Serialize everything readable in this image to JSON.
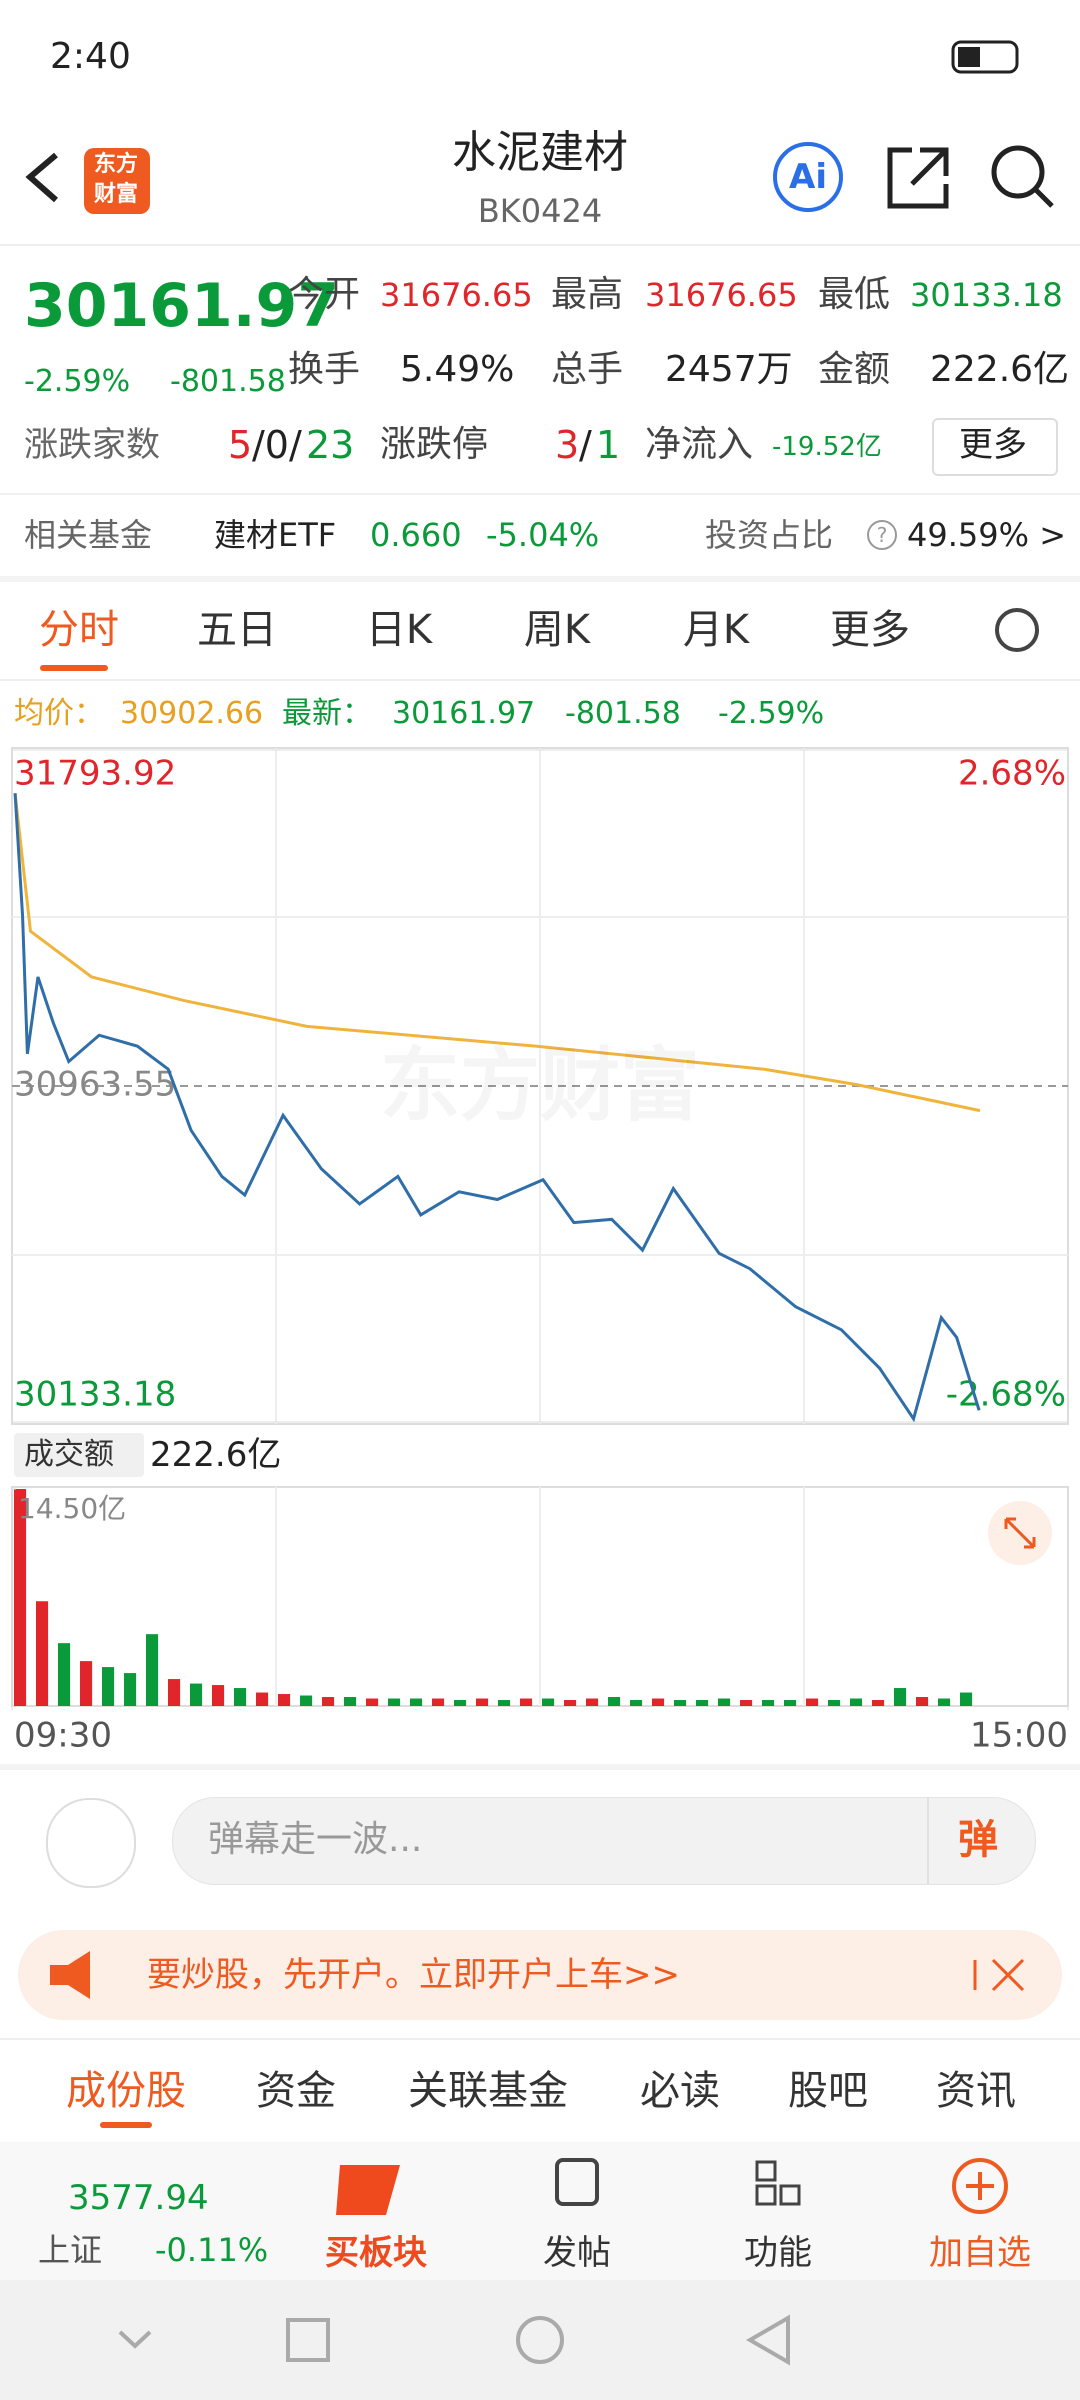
{
  "status_bar": {
    "time": "2:40"
  },
  "header": {
    "logo": [
      "东方",
      "财富"
    ],
    "title": "水泥建材",
    "code": "BK0424",
    "ai": "Ai"
  },
  "quote": {
    "price": "30161.97",
    "change_pct": "-2.59%",
    "change": "-801.58",
    "fields": [
      {
        "label": "今开",
        "value": "31676.65"
      },
      {
        "label": "最高",
        "value": "31676.65"
      },
      {
        "label": "最低",
        "value": "30133.18"
      },
      {
        "label": "换手",
        "value": "5.49%"
      },
      {
        "label": "总手",
        "value": "2457万"
      },
      {
        "label": "金额",
        "value": "222.6亿"
      }
    ],
    "breadth_label": "涨跌家数",
    "breadth_up": "5",
    "breadth_flat": "/0/",
    "breadth_down": "23",
    "limit_label": "涨跌停",
    "limit_up": "3",
    "limit_sep": "/",
    "limit_down": "1",
    "netflow_label": "净流入",
    "netflow": "-19.52亿",
    "more": "更多"
  },
  "fund": {
    "label": "相关基金",
    "name": "建材ETF",
    "price": "0.660",
    "change": "-5.04%",
    "ratio_label": "投资占比",
    "ratio_help": "?",
    "ratio": "49.59% >"
  },
  "tabs": [
    "分时",
    "五日",
    "日K",
    "周K",
    "月K",
    "更多"
  ],
  "intraday": {
    "legend": {
      "avg_label": "均价：",
      "avg": "30902.66",
      "last_label": "最新：",
      "last": "30161.97",
      "change": "-801.58",
      "pct": "-2.59%"
    },
    "watermark": "东方财富",
    "xlim": [
      0,
      240
    ],
    "xticks": [
      {
        "value": 0,
        "label": "09:30"
      },
      {
        "value": 240,
        "label": "15:00"
      }
    ],
    "ylim": [
      30133.18,
      31793.92
    ],
    "yticks": [
      30133.18,
      30963.55,
      31793.92
    ],
    "pct_top": "2.68%",
    "pct_bottom": "-2.68%",
    "price": {
      "color": "#2f6ea8",
      "x": [
        0.7,
        2.4,
        3.5,
        5.9,
        9.4,
        12.9,
        19.8,
        28.5,
        35.5,
        40.7,
        47.7,
        52.9,
        61.6,
        70.3,
        79,
        87.7,
        92.9,
        101.6,
        110.3,
        120.7,
        127.7,
        136.3,
        143.3,
        150.3,
        160.7,
        167.7,
        178.1,
        188.5,
        197.2,
        204.9,
        211.2,
        214.7,
        219.8
      ],
      "values": [
        31687,
        31384,
        31043,
        31233,
        31119,
        31024,
        31089,
        31062,
        31005,
        30854,
        30740,
        30694,
        30891,
        30759,
        30672,
        30740,
        30645,
        30702,
        30683,
        30732,
        30626,
        30634,
        30558,
        30710,
        30550,
        30512,
        30418,
        30361,
        30266,
        30141,
        30391,
        30342,
        30161.97
      ]
    },
    "avg": {
      "color": "#f0b43c",
      "x": [
        0.7,
        4.2,
        18.1,
        39,
        67,
        119,
        171,
        192,
        220
      ],
      "values": [
        31687,
        31346,
        31233,
        31175,
        31111,
        31062,
        31005,
        30967,
        30902.66
      ]
    },
    "volume_label": "成交额",
    "volume_total": "222.6亿",
    "vol_ylim": [
      0,
      14.5
    ],
    "vol_yticks": [
      {
        "value": 14.5,
        "label": "14.50亿"
      }
    ],
    "volume": {
      "x": [
        0,
        5,
        10,
        15,
        20,
        25,
        30,
        35,
        40,
        45,
        50,
        55,
        60,
        65,
        70,
        75,
        80,
        85,
        90,
        95,
        100,
        105,
        110,
        115,
        120,
        125,
        130,
        135,
        140,
        145,
        150,
        155,
        160,
        165,
        170,
        175,
        180,
        185,
        190,
        195,
        200,
        205,
        210,
        215
      ],
      "values": [
        14.5,
        7.0,
        4.2,
        3.0,
        2.6,
        2.2,
        4.8,
        1.8,
        1.5,
        1.4,
        1.2,
        0.9,
        0.8,
        0.7,
        0.6,
        0.6,
        0.5,
        0.5,
        0.5,
        0.5,
        0.4,
        0.5,
        0.4,
        0.5,
        0.5,
        0.4,
        0.5,
        0.6,
        0.4,
        0.5,
        0.4,
        0.4,
        0.5,
        0.4,
        0.4,
        0.4,
        0.5,
        0.4,
        0.5,
        0.4,
        1.2,
        0.6,
        0.5,
        0.9
      ],
      "colors": [
        "#e0262b",
        "#e0262b",
        "#0b9a3a",
        "#e0262b",
        "#0b9a3a",
        "#0b9a3a",
        "#0b9a3a",
        "#e0262b",
        "#0b9a3a",
        "#e0262b",
        "#0b9a3a",
        "#e0262b",
        "#e0262b",
        "#0b9a3a",
        "#e0262b",
        "#0b9a3a",
        "#e0262b",
        "#0b9a3a",
        "#0b9a3a",
        "#e0262b",
        "#0b9a3a",
        "#e0262b",
        "#0b9a3a",
        "#e0262b",
        "#0b9a3a",
        "#e0262b",
        "#e0262b",
        "#0b9a3a",
        "#0b9a3a",
        "#e0262b",
        "#0b9a3a",
        "#0b9a3a",
        "#0b9a3a",
        "#e0262b",
        "#0b9a3a",
        "#0b9a3a",
        "#e0262b",
        "#0b9a3a",
        "#0b9a3a",
        "#e0262b",
        "#0b9a3a",
        "#e0262b",
        "#0b9a3a",
        "#0b9a3a"
      ]
    }
  },
  "comment": {
    "placeholder": "弹幕走一波...",
    "button": "弹"
  },
  "banner": {
    "text": "要炒股，先开户。立即开户上车>>"
  },
  "bottom_tabs": [
    "成份股",
    "资金",
    "关联基金",
    "必读",
    "股吧",
    "资讯"
  ],
  "bottom_bar": {
    "index_value": "3577.94",
    "index_name": "上证",
    "index_change": "-0.11%",
    "items": [
      "买板块",
      "发帖",
      "功能",
      "加自选"
    ]
  }
}
